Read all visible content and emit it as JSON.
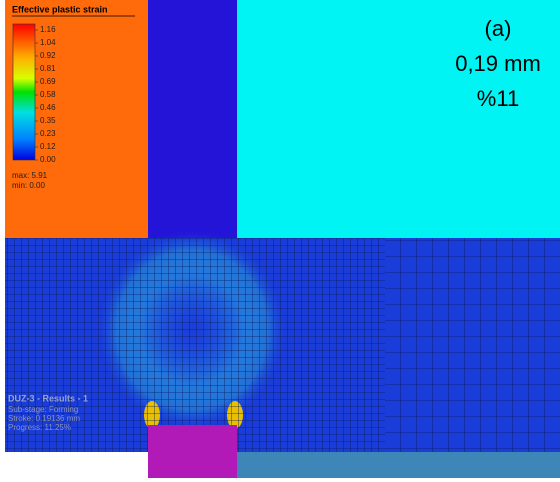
{
  "legend": {
    "title": "Effective plastic strain",
    "labels": [
      "1.16",
      "1.04",
      "0.92",
      "0.81",
      "0.69",
      "0.58",
      "0.46",
      "0.35",
      "0.23",
      "0.12",
      "0.00"
    ],
    "max": "max: 5.91",
    "min": "min:  0.00"
  },
  "annotation": [
    "(a)",
    "0,19 mm",
    "%11"
  ],
  "status": {
    "title": "DUZ-3 - Results - 1",
    "lines": [
      "Sub-stage: Forming",
      "Stroke: 0.19136 mm",
      "Progress: 11.25%"
    ]
  }
}
